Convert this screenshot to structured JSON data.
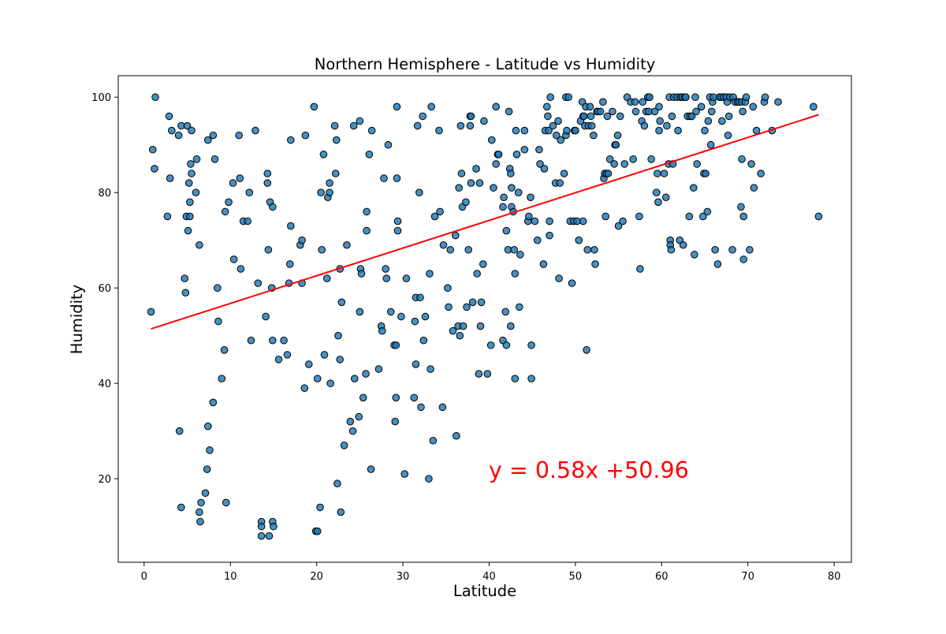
{
  "chart_data": {
    "type": "scatter",
    "title": "Northern Hemisphere - Latitude vs Humidity",
    "xlabel": "Latitude",
    "ylabel": "Humidity",
    "xlim": [
      -3,
      82
    ],
    "ylim": [
      2.5,
      104.5
    ],
    "x_ticks": [
      0,
      10,
      20,
      30,
      40,
      50,
      60,
      70,
      80
    ],
    "y_ticks": [
      20,
      40,
      60,
      80,
      100
    ],
    "grid": false,
    "annotation": "y = 0.58x +50.96",
    "annotation_color": "#ff0000",
    "point_color": "#1f77b4",
    "regression": {
      "slope": 0.58,
      "intercept": 50.96,
      "x_range": [
        0.8,
        78.2
      ],
      "color": "#ff0000"
    },
    "points": [
      [
        0.8,
        55
      ],
      [
        1.0,
        89
      ],
      [
        1.2,
        85
      ],
      [
        1.3,
        100
      ],
      [
        2.7,
        75
      ],
      [
        2.9,
        96
      ],
      [
        3.0,
        83
      ],
      [
        3.2,
        93
      ],
      [
        4.0,
        92
      ],
      [
        4.1,
        30
      ],
      [
        4.3,
        94
      ],
      [
        4.3,
        14
      ],
      [
        4.7,
        62
      ],
      [
        4.8,
        59
      ],
      [
        4.9,
        75
      ],
      [
        5.0,
        94
      ],
      [
        5.1,
        72
      ],
      [
        5.2,
        82
      ],
      [
        5.3,
        78
      ],
      [
        5.3,
        75
      ],
      [
        5.4,
        86
      ],
      [
        5.5,
        84
      ],
      [
        5.5,
        93
      ],
      [
        6.0,
        80
      ],
      [
        6.1,
        87
      ],
      [
        6.4,
        69
      ],
      [
        6.4,
        13
      ],
      [
        6.5,
        11
      ],
      [
        6.6,
        15
      ],
      [
        7.1,
        17
      ],
      [
        7.3,
        22
      ],
      [
        7.4,
        91
      ],
      [
        7.4,
        31
      ],
      [
        7.6,
        26
      ],
      [
        8.0,
        92
      ],
      [
        8.0,
        36
      ],
      [
        8.2,
        87
      ],
      [
        8.5,
        60
      ],
      [
        8.6,
        53
      ],
      [
        9.0,
        41
      ],
      [
        9.3,
        47
      ],
      [
        9.4,
        76
      ],
      [
        9.5,
        15
      ],
      [
        9.8,
        78
      ],
      [
        10.3,
        82
      ],
      [
        10.4,
        66
      ],
      [
        11.0,
        92
      ],
      [
        11.1,
        83
      ],
      [
        11.2,
        64
      ],
      [
        11.5,
        74
      ],
      [
        12.0,
        74
      ],
      [
        12.2,
        80
      ],
      [
        12.4,
        49
      ],
      [
        12.9,
        93
      ],
      [
        13.2,
        61
      ],
      [
        13.6,
        11
      ],
      [
        13.6,
        10
      ],
      [
        13.6,
        8
      ],
      [
        14.1,
        54
      ],
      [
        14.3,
        84
      ],
      [
        14.3,
        82
      ],
      [
        14.4,
        68
      ],
      [
        14.5,
        8
      ],
      [
        14.6,
        78
      ],
      [
        14.8,
        60
      ],
      [
        14.9,
        77
      ],
      [
        14.9,
        49
      ],
      [
        14.9,
        11
      ],
      [
        15.0,
        10
      ],
      [
        15.6,
        45
      ],
      [
        16.2,
        49
      ],
      [
        16.6,
        46
      ],
      [
        16.8,
        61
      ],
      [
        16.9,
        65
      ],
      [
        17.0,
        91
      ],
      [
        17.0,
        73
      ],
      [
        18.1,
        69
      ],
      [
        18.3,
        61
      ],
      [
        18.3,
        70
      ],
      [
        18.6,
        39
      ],
      [
        18.7,
        92
      ],
      [
        19.1,
        44
      ],
      [
        19.7,
        98
      ],
      [
        19.9,
        9
      ],
      [
        20.1,
        41
      ],
      [
        20.1,
        9
      ],
      [
        20.4,
        14
      ],
      [
        20.5,
        80
      ],
      [
        20.6,
        68
      ],
      [
        20.8,
        88
      ],
      [
        20.9,
        46
      ],
      [
        21.2,
        62
      ],
      [
        21.3,
        79
      ],
      [
        21.5,
        82
      ],
      [
        21.5,
        80
      ],
      [
        21.6,
        40
      ],
      [
        22.1,
        94
      ],
      [
        22.2,
        84
      ],
      [
        22.3,
        91
      ],
      [
        22.4,
        19
      ],
      [
        22.5,
        50
      ],
      [
        22.7,
        64
      ],
      [
        22.7,
        45
      ],
      [
        22.8,
        13
      ],
      [
        22.9,
        57
      ],
      [
        23.2,
        27
      ],
      [
        23.5,
        69
      ],
      [
        23.9,
        32
      ],
      [
        24.2,
        30
      ],
      [
        24.3,
        94
      ],
      [
        24.4,
        41
      ],
      [
        24.9,
        33
      ],
      [
        25.0,
        55
      ],
      [
        25.0,
        95
      ],
      [
        25.1,
        64
      ],
      [
        25.2,
        63
      ],
      [
        25.4,
        37
      ],
      [
        25.7,
        42
      ],
      [
        25.8,
        72
      ],
      [
        25.8,
        76
      ],
      [
        26.1,
        88
      ],
      [
        26.3,
        22
      ],
      [
        26.4,
        93
      ],
      [
        27.2,
        43
      ],
      [
        27.5,
        52
      ],
      [
        27.6,
        51
      ],
      [
        27.8,
        83
      ],
      [
        28.0,
        64
      ],
      [
        28.1,
        62
      ],
      [
        28.3,
        90
      ],
      [
        28.6,
        55
      ],
      [
        29.0,
        48
      ],
      [
        29.1,
        32
      ],
      [
        29.2,
        48
      ],
      [
        29.2,
        37
      ],
      [
        29.3,
        98
      ],
      [
        29.3,
        83
      ],
      [
        29.4,
        74
      ],
      [
        29.4,
        72
      ],
      [
        29.8,
        54
      ],
      [
        30.2,
        21
      ],
      [
        30.4,
        62
      ],
      [
        31.3,
        37
      ],
      [
        31.4,
        53
      ],
      [
        31.5,
        44
      ],
      [
        31.5,
        58
      ],
      [
        31.7,
        94
      ],
      [
        31.9,
        80
      ],
      [
        32.0,
        58
      ],
      [
        32.1,
        35
      ],
      [
        32.3,
        96
      ],
      [
        32.4,
        49
      ],
      [
        32.6,
        54
      ],
      [
        33.0,
        20
      ],
      [
        33.1,
        63
      ],
      [
        33.2,
        43
      ],
      [
        33.3,
        98
      ],
      [
        33.5,
        28
      ],
      [
        33.7,
        75
      ],
      [
        34.2,
        93
      ],
      [
        34.3,
        76
      ],
      [
        34.6,
        35
      ],
      [
        34.7,
        69
      ],
      [
        35.2,
        60
      ],
      [
        35.3,
        56
      ],
      [
        35.5,
        68
      ],
      [
        35.8,
        51
      ],
      [
        36.1,
        71
      ],
      [
        36.2,
        29
      ],
      [
        36.4,
        52
      ],
      [
        36.5,
        81
      ],
      [
        36.6,
        50
      ],
      [
        36.7,
        94
      ],
      [
        36.8,
        84
      ],
      [
        36.9,
        77
      ],
      [
        37.0,
        52
      ],
      [
        37.3,
        78
      ],
      [
        37.4,
        56
      ],
      [
        37.6,
        68
      ],
      [
        37.8,
        96
      ],
      [
        37.8,
        94
      ],
      [
        37.9,
        82
      ],
      [
        37.9,
        96
      ],
      [
        38.1,
        57
      ],
      [
        38.5,
        85
      ],
      [
        38.6,
        63
      ],
      [
        38.8,
        42
      ],
      [
        38.9,
        82
      ],
      [
        39.0,
        52
      ],
      [
        39.1,
        57
      ],
      [
        39.3,
        65
      ],
      [
        39.4,
        95
      ],
      [
        39.8,
        42
      ],
      [
        40.2,
        48
      ],
      [
        40.3,
        91
      ],
      [
        40.5,
        81
      ],
      [
        40.8,
        86
      ],
      [
        40.8,
        98
      ],
      [
        41.0,
        88
      ],
      [
        41.1,
        88
      ],
      [
        41.6,
        77
      ],
      [
        41.6,
        49
      ],
      [
        41.7,
        79
      ],
      [
        41.9,
        55
      ],
      [
        42.0,
        72
      ],
      [
        42.0,
        48
      ],
      [
        42.2,
        68
      ],
      [
        42.3,
        97
      ],
      [
        42.4,
        85
      ],
      [
        42.5,
        84
      ],
      [
        42.5,
        52
      ],
      [
        42.6,
        81
      ],
      [
        42.6,
        77
      ],
      [
        42.8,
        76
      ],
      [
        42.9,
        68
      ],
      [
        43.0,
        63
      ],
      [
        43.0,
        41
      ],
      [
        43.1,
        93
      ],
      [
        43.2,
        88
      ],
      [
        43.4,
        80
      ],
      [
        43.5,
        56
      ],
      [
        43.6,
        67
      ],
      [
        44.1,
        93
      ],
      [
        44.1,
        89
      ],
      [
        44.5,
        74
      ],
      [
        44.6,
        75
      ],
      [
        44.8,
        79
      ],
      [
        44.9,
        48
      ],
      [
        44.9,
        41
      ],
      [
        45.3,
        74
      ],
      [
        45.6,
        70
      ],
      [
        45.8,
        89
      ],
      [
        45.9,
        86
      ],
      [
        46.3,
        65
      ],
      [
        46.4,
        85
      ],
      [
        46.5,
        93
      ],
      [
        46.7,
        98
      ],
      [
        46.8,
        96
      ],
      [
        46.9,
        93
      ],
      [
        47.0,
        74
      ],
      [
        47.0,
        71
      ],
      [
        47.1,
        100
      ],
      [
        47.4,
        94
      ],
      [
        47.7,
        82
      ],
      [
        47.8,
        92
      ],
      [
        48.0,
        95
      ],
      [
        48.1,
        62
      ],
      [
        48.2,
        82
      ],
      [
        48.3,
        91
      ],
      [
        48.7,
        84
      ],
      [
        48.9,
        92
      ],
      [
        48.9,
        100
      ],
      [
        49.0,
        93
      ],
      [
        49.2,
        100
      ],
      [
        49.4,
        74
      ],
      [
        49.6,
        61
      ],
      [
        49.8,
        74
      ],
      [
        49.9,
        93
      ],
      [
        50.0,
        93
      ],
      [
        50.2,
        74
      ],
      [
        50.4,
        70
      ],
      [
        50.6,
        95
      ],
      [
        50.8,
        99
      ],
      [
        50.9,
        96
      ],
      [
        50.9,
        74
      ],
      [
        51.0,
        96
      ],
      [
        51.1,
        94
      ],
      [
        51.2,
        98
      ],
      [
        51.3,
        47
      ],
      [
        51.4,
        68
      ],
      [
        51.5,
        94
      ],
      [
        51.7,
        98
      ],
      [
        51.8,
        96
      ],
      [
        51.9,
        94
      ],
      [
        52.1,
        92
      ],
      [
        52.2,
        68
      ],
      [
        52.3,
        65
      ],
      [
        52.5,
        97
      ],
      [
        52.6,
        97
      ],
      [
        52.9,
        97
      ],
      [
        53.2,
        99
      ],
      [
        53.3,
        83
      ],
      [
        53.4,
        84
      ],
      [
        53.5,
        75
      ],
      [
        53.6,
        84
      ],
      [
        53.7,
        96
      ],
      [
        53.8,
        84
      ],
      [
        54.0,
        87
      ],
      [
        54.3,
        97
      ],
      [
        54.5,
        86
      ],
      [
        54.6,
        90
      ],
      [
        54.7,
        90
      ],
      [
        54.9,
        92
      ],
      [
        55.0,
        73
      ],
      [
        55.2,
        96
      ],
      [
        55.5,
        74
      ],
      [
        55.7,
        86
      ],
      [
        56.0,
        100
      ],
      [
        56.4,
        99
      ],
      [
        56.7,
        87
      ],
      [
        56.9,
        99
      ],
      [
        57.0,
        97
      ],
      [
        57.4,
        75
      ],
      [
        57.5,
        64
      ],
      [
        57.7,
        95
      ],
      [
        57.8,
        99
      ],
      [
        58.0,
        94
      ],
      [
        58.2,
        97
      ],
      [
        58.4,
        100
      ],
      [
        58.5,
        97
      ],
      [
        58.6,
        100
      ],
      [
        58.8,
        87
      ],
      [
        59.2,
        97
      ],
      [
        59.4,
        80
      ],
      [
        59.5,
        84
      ],
      [
        59.6,
        78
      ],
      [
        59.7,
        98
      ],
      [
        59.7,
        93
      ],
      [
        59.8,
        95
      ],
      [
        60.3,
        84
      ],
      [
        60.5,
        79
      ],
      [
        60.6,
        94
      ],
      [
        60.8,
        86
      ],
      [
        60.9,
        100
      ],
      [
        61.0,
        70
      ],
      [
        61.0,
        69
      ],
      [
        61.1,
        68
      ],
      [
        61.2,
        96
      ],
      [
        61.3,
        86
      ],
      [
        61.4,
        100
      ],
      [
        61.8,
        100
      ],
      [
        61.9,
        93
      ],
      [
        62.1,
        70
      ],
      [
        62.2,
        100
      ],
      [
        62.4,
        100
      ],
      [
        62.5,
        69
      ],
      [
        62.7,
        100
      ],
      [
        62.8,
        100
      ],
      [
        63.0,
        96
      ],
      [
        63.2,
        75
      ],
      [
        63.3,
        96
      ],
      [
        63.5,
        96
      ],
      [
        63.7,
        81
      ],
      [
        63.8,
        67
      ],
      [
        63.9,
        100
      ],
      [
        64.0,
        97
      ],
      [
        64.1,
        86
      ],
      [
        64.6,
        98
      ],
      [
        64.8,
        75
      ],
      [
        64.9,
        84
      ],
      [
        65.0,
        93
      ],
      [
        65.1,
        84
      ],
      [
        65.3,
        76
      ],
      [
        65.4,
        95
      ],
      [
        65.6,
        100
      ],
      [
        65.7,
        90
      ],
      [
        65.8,
        97
      ],
      [
        65.9,
        99
      ],
      [
        66.0,
        100
      ],
      [
        66.2,
        68
      ],
      [
        66.5,
        65
      ],
      [
        66.7,
        100
      ],
      [
        66.9,
        100
      ],
      [
        67.0,
        95
      ],
      [
        67.2,
        100
      ],
      [
        67.5,
        100
      ],
      [
        67.6,
        99
      ],
      [
        67.7,
        92
      ],
      [
        67.8,
        96
      ],
      [
        67.9,
        100
      ],
      [
        68.2,
        68
      ],
      [
        68.3,
        100
      ],
      [
        68.5,
        99
      ],
      [
        68.8,
        99
      ],
      [
        69.0,
        99
      ],
      [
        69.2,
        77
      ],
      [
        69.3,
        87
      ],
      [
        69.3,
        99
      ],
      [
        69.4,
        97
      ],
      [
        69.5,
        66
      ],
      [
        69.5,
        75
      ],
      [
        69.7,
        99
      ],
      [
        69.8,
        100
      ],
      [
        70.2,
        68
      ],
      [
        70.4,
        86
      ],
      [
        70.6,
        98
      ],
      [
        70.7,
        81
      ],
      [
        71.0,
        93
      ],
      [
        71.5,
        84
      ],
      [
        71.9,
        99
      ],
      [
        72.0,
        100
      ],
      [
        72.8,
        93
      ],
      [
        73.5,
        99
      ],
      [
        77.6,
        98
      ],
      [
        78.2,
        75
      ]
    ]
  }
}
